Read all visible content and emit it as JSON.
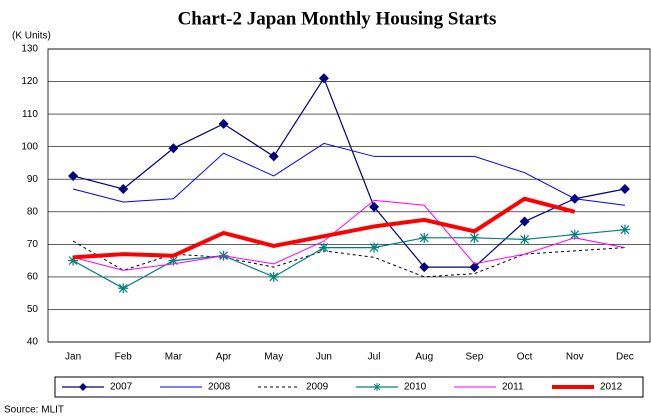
{
  "chart_data": {
    "type": "line",
    "title": "Chart-2 Japan Monthly Housing Starts",
    "y_label": "(K Units)",
    "source": "Source: MLIT",
    "categories": [
      "Jan",
      "Feb",
      "Mar",
      "Apr",
      "May",
      "Jun",
      "Jul",
      "Aug",
      "Sep",
      "Oct",
      "Nov",
      "Dec"
    ],
    "ylim": [
      40,
      130
    ],
    "yticks": [
      40,
      50,
      60,
      70,
      80,
      90,
      100,
      110,
      120,
      130
    ],
    "grid": true,
    "series": [
      {
        "name": "2007",
        "color": "#000080",
        "line_width": 1.2,
        "dashed": false,
        "marker": "diamond",
        "values": [
          91,
          87,
          99.5,
          107,
          97,
          121,
          81.5,
          63,
          63,
          77,
          84,
          87
        ]
      },
      {
        "name": "2008",
        "color": "#0000ff",
        "line_width": 1,
        "dashed": false,
        "marker": "none",
        "values": [
          87,
          83,
          84,
          98,
          91,
          101,
          97,
          97,
          97,
          92,
          84,
          82
        ]
      },
      {
        "name": "2009",
        "color": "#000000",
        "line_width": 1,
        "dashed": true,
        "marker": "none",
        "values": [
          71,
          62,
          67,
          66,
          63,
          68,
          66,
          60,
          61,
          67,
          68,
          69
        ]
      },
      {
        "name": "2010",
        "color": "#008080",
        "line_width": 1.2,
        "dashed": false,
        "marker": "star",
        "values": [
          65,
          56.5,
          65,
          66.5,
          60,
          69,
          69,
          72,
          72,
          71.5,
          73,
          74.5
        ]
      },
      {
        "name": "2011",
        "color": "#ff00ff",
        "line_width": 1,
        "dashed": false,
        "marker": "none",
        "values": [
          66,
          62,
          64,
          66.5,
          64,
          71,
          83.5,
          82,
          64,
          67,
          72,
          69
        ]
      },
      {
        "name": "2012",
        "color": "#ff0000",
        "line_width": 4,
        "dashed": false,
        "marker": "none",
        "values": [
          66,
          67,
          66.5,
          73.5,
          69.5,
          72.5,
          75.5,
          77.5,
          74,
          84,
          80,
          null
        ]
      }
    ]
  }
}
